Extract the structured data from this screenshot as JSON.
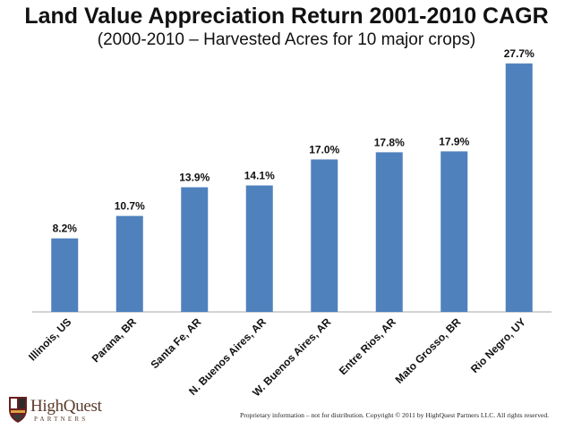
{
  "chart_data": {
    "type": "bar",
    "title": "Land Value Appreciation Return 2001-2010 CAGR",
    "subtitle": "(2000-2010 – Harvested Acres for 10 major crops)",
    "categories": [
      "Illinois, US",
      "Parana, BR",
      "Santa Fe, AR",
      "N. Buenos Aires, AR",
      "W. Buenos Aires, AR",
      "Entre Rios, AR",
      "Mato Grosso, BR",
      "Rio Negro, UY"
    ],
    "values": [
      8.2,
      10.7,
      13.9,
      14.1,
      17.0,
      17.8,
      17.9,
      27.7
    ],
    "data_labels": [
      "8.2%",
      "10.7%",
      "13.9%",
      "14.1%",
      "17.0%",
      "17.8%",
      "17.9%",
      "27.7%"
    ],
    "ylim": [
      0,
      28.8
    ],
    "xlabel": "",
    "ylabel": "",
    "grid": false,
    "bar_color": "#4f81bd"
  },
  "logo": {
    "name": "HighQuest",
    "sub": "PARTNERS"
  },
  "footer": "Proprietary information – not for distribution.  Copyright © 2011 by HighQuest Partners LLC.  All rights reserved."
}
